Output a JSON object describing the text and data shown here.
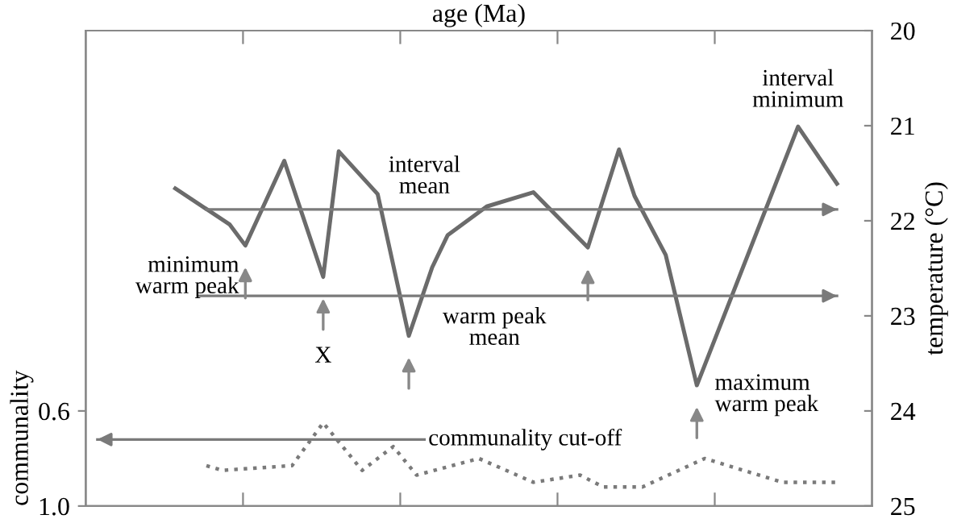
{
  "chart_data": {
    "type": "line",
    "xlabel": "age (Ma)",
    "ylabel": "communality",
    "y2label": "temperature (°C)",
    "categories": [
      null,
      null,
      null,
      null,
      null,
      null,
      null,
      null,
      null,
      null,
      null,
      null,
      null,
      null,
      null,
      null,
      null,
      null,
      null,
      null,
      null,
      null,
      null,
      null,
      null,
      null,
      null,
      null,
      null,
      null,
      null,
      null,
      null,
      null,
      null,
      null,
      null,
      null,
      null,
      null,
      null,
      null,
      null,
      null,
      null,
      null,
      null,
      null,
      null,
      null,
      null,
      null,
      null,
      null,
      null,
      null,
      null,
      null,
      null,
      null,
      null,
      null,
      null,
      null,
      null,
      null,
      null,
      null,
      null,
      null,
      null,
      null,
      null,
      null,
      null,
      null,
      null,
      null,
      null,
      null,
      null,
      null,
      null,
      null,
      null,
      null,
      null,
      null,
      null,
      null,
      null,
      null,
      null,
      null,
      null,
      null,
      null,
      null,
      null,
      null,
      null
    ],
    "ylim": [
      1.0,
      -1.0
    ],
    "yticks": [
      {
        "value": 0.6,
        "label": "0.6"
      },
      {
        "value": 1.0,
        "label": "1.0"
      }
    ],
    "y2lim": [
      25,
      20
    ],
    "y2ticks": [
      20,
      21,
      22,
      23,
      24,
      25
    ],
    "series": [
      {
        "color": "#6b6b6b",
        "axis": "y2",
        "line_style": "solid",
        "values": [
          null,
          null,
          null,
          null,
          null,
          null,
          null,
          null,
          null,
          null,
          null,
          21.66,
          null,
          null,
          null,
          null,
          null,
          null,
          22.04,
          null,
          22.26,
          null,
          null,
          null,
          null,
          21.37,
          null,
          null,
          null,
          null,
          22.59,
          null,
          21.27,
          null,
          null,
          null,
          null,
          21.72,
          null,
          null,
          null,
          23.21,
          null,
          null,
          22.49,
          null,
          22.15,
          null,
          null,
          null,
          null,
          21.85,
          null,
          null,
          null,
          null,
          null,
          21.7,
          null,
          null,
          null,
          null,
          null,
          null,
          22.28,
          null,
          null,
          null,
          21.25,
          null,
          21.74,
          null,
          null,
          null,
          22.36,
          null,
          null,
          null,
          23.73,
          null,
          null,
          null,
          null,
          null,
          null,
          null,
          null,
          null,
          null,
          null,
          null,
          21.01,
          null,
          null,
          null,
          null,
          21.61,
          null,
          null,
          null,
          null
        ]
      },
      {
        "color": "#7a7a7a",
        "axis": "y",
        "line_style": "dotted",
        "values": [
          null,
          null,
          null,
          null,
          null,
          null,
          null,
          null,
          null,
          null,
          null,
          null,
          null,
          null,
          null,
          0.83,
          null,
          0.85,
          null,
          null,
          null,
          null,
          null,
          null,
          null,
          null,
          0.83,
          null,
          null,
          null,
          0.65,
          null,
          null,
          null,
          null,
          0.85,
          null,
          null,
          null,
          0.75,
          null,
          null,
          0.87,
          null,
          null,
          null,
          null,
          null,
          null,
          null,
          0.8,
          null,
          null,
          null,
          null,
          null,
          null,
          0.9,
          null,
          null,
          null,
          null,
          null,
          0.87,
          null,
          null,
          0.92,
          null,
          null,
          null,
          null,
          0.92,
          null,
          null,
          null,
          null,
          null,
          null,
          null,
          0.8,
          null,
          null,
          null,
          null,
          null,
          null,
          null,
          null,
          null,
          0.9,
          null,
          null,
          null,
          null,
          null,
          null,
          0.9,
          null,
          null,
          null,
          null
        ]
      }
    ],
    "ref_lines": [
      {
        "axis": "y2",
        "value": 21.88,
        "label": "interval mean",
        "color": "#7a7a7a"
      },
      {
        "axis": "y2",
        "value": 22.79,
        "label": "warm peak mean",
        "color": "#7a7a7a"
      },
      {
        "axis": "y",
        "value": 0.72,
        "label": "communality cut-off",
        "color": "#7a7a7a"
      }
    ],
    "annotations": [
      "minimum warm peak",
      "X",
      "maximum warm peak",
      "interval minimum"
    ],
    "grid": false,
    "marker": "none"
  }
}
